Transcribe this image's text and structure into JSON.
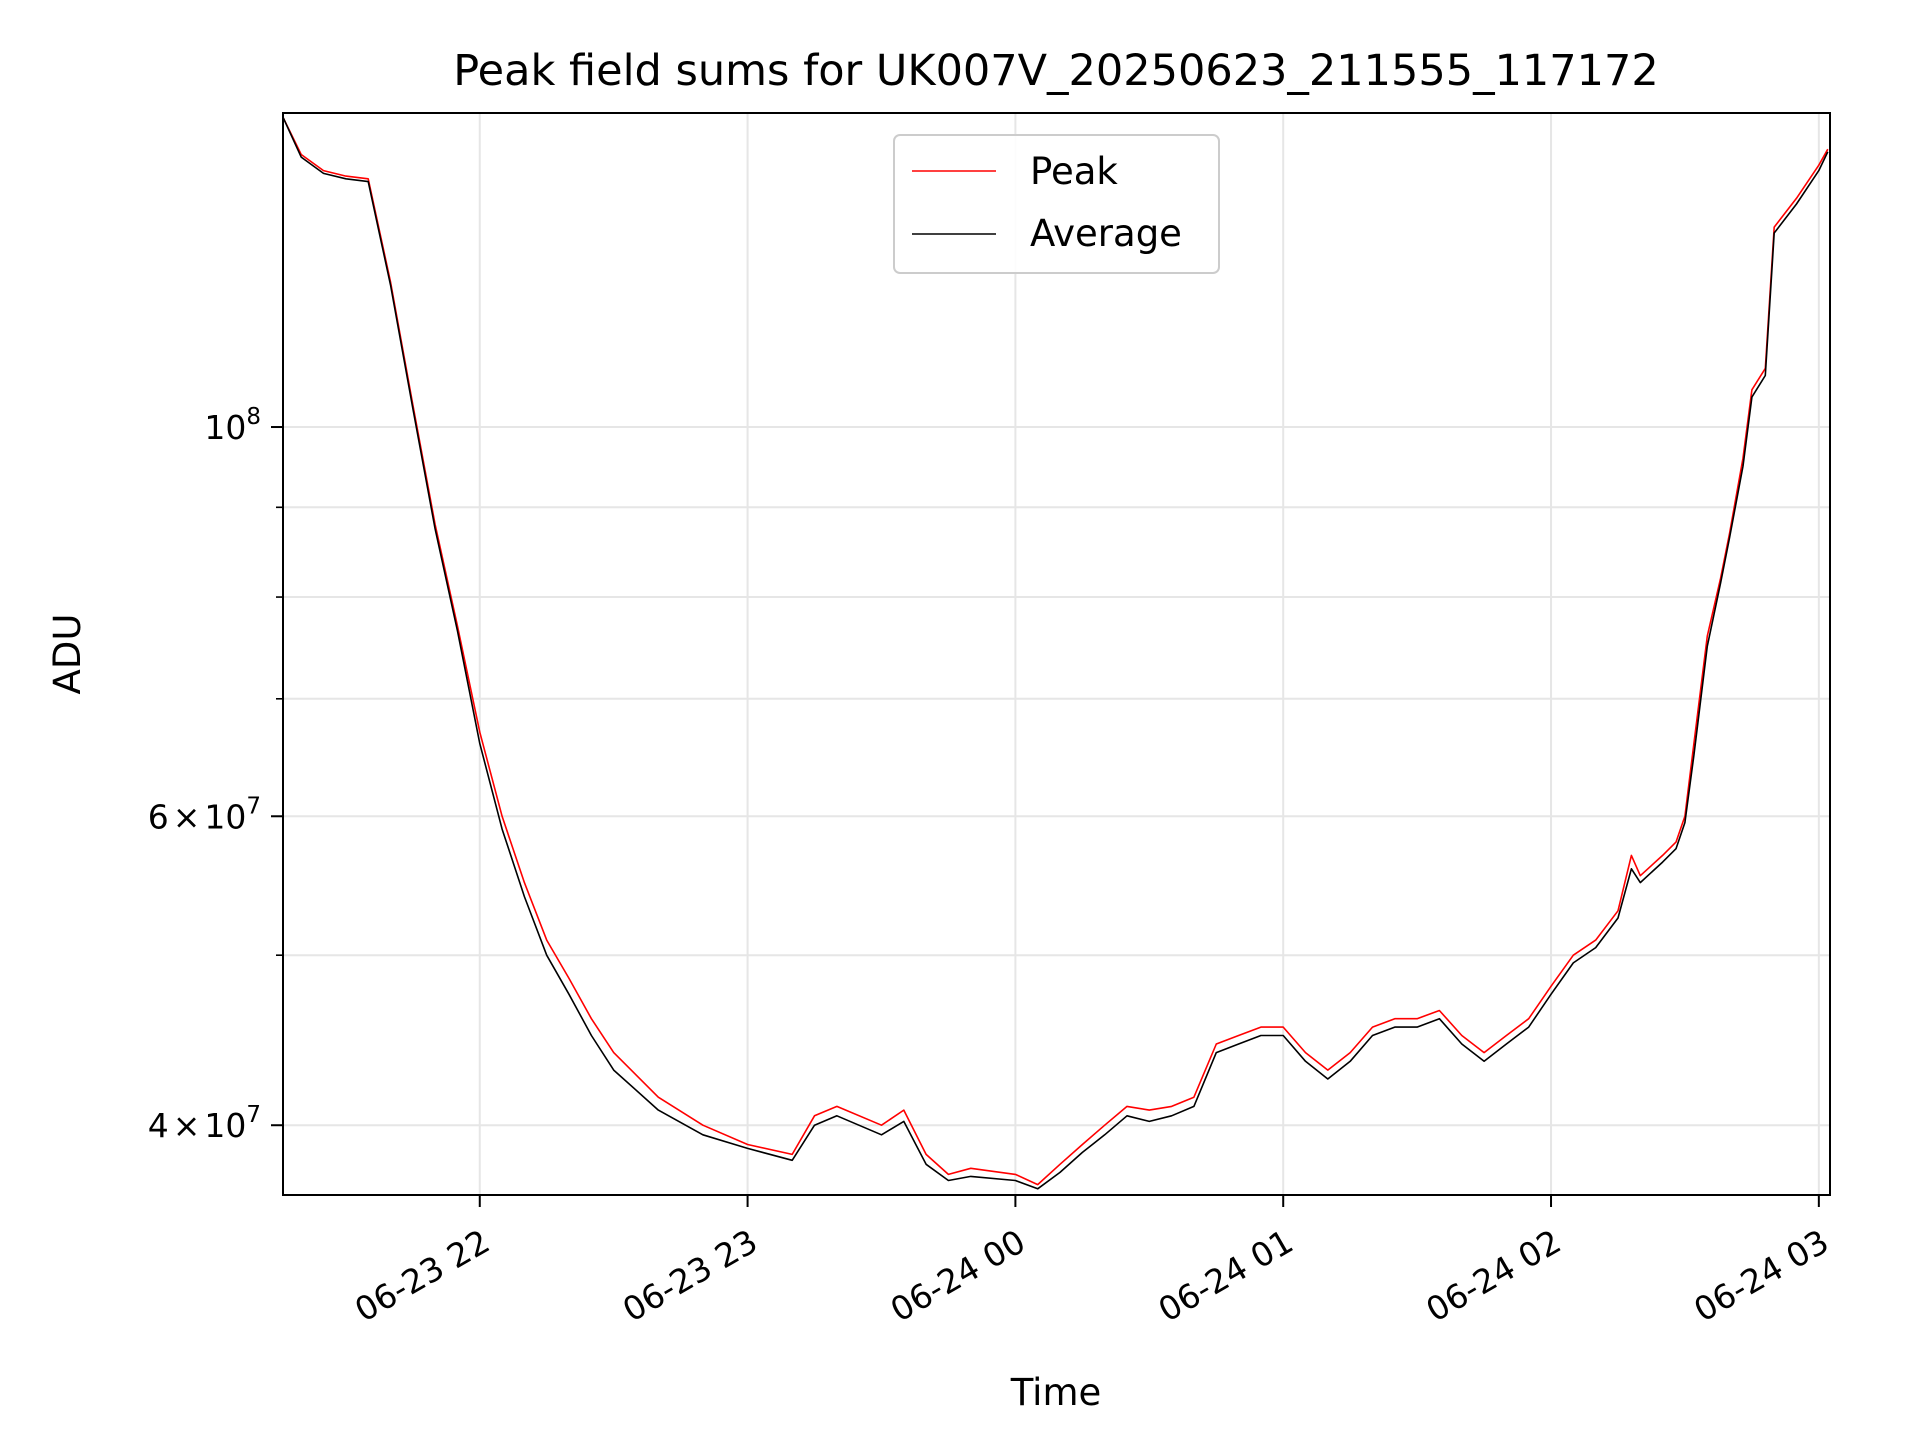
{
  "chart_data": {
    "type": "line",
    "title": "Peak field sums for UK007V_20250623_211555_117172",
    "xlabel": "Time",
    "ylabel": "ADU",
    "xlim": [
      "2025-06-23T21:15:55",
      "2025-06-24T03:02:30"
    ],
    "ylim": [
      36500000,
      151000000
    ],
    "yscale": "log",
    "grid": true,
    "legend_position": "top-center",
    "x_ticks": [
      {
        "t": "2025-06-23T22:00:00",
        "label": "06-23 22"
      },
      {
        "t": "2025-06-23T23:00:00",
        "label": "06-23 23"
      },
      {
        "t": "2025-06-24T00:00:00",
        "label": "06-24 00"
      },
      {
        "t": "2025-06-24T01:00:00",
        "label": "06-24 01"
      },
      {
        "t": "2025-06-24T02:00:00",
        "label": "06-24 02"
      },
      {
        "t": "2025-06-24T03:00:00",
        "label": "06-24 03"
      }
    ],
    "y_ticks_major": [
      {
        "value": 40000000,
        "label_mantissa": "4",
        "label_base": "10",
        "label_exp": "7"
      },
      {
        "value": 60000000,
        "label_mantissa": "6",
        "label_base": "10",
        "label_exp": "7"
      },
      {
        "value": 100000000,
        "label_mantissa": "",
        "label_base": "10",
        "label_exp": "8"
      }
    ],
    "y_ticks_minor": [
      50000000,
      70000000,
      80000000,
      90000000
    ],
    "series": [
      {
        "name": "Peak",
        "color": "#ff0000",
        "x": [
          "2025-06-23T21:16:00",
          "2025-06-23T21:20:00",
          "2025-06-23T21:25:00",
          "2025-06-23T21:30:00",
          "2025-06-23T21:35:00",
          "2025-06-23T21:40:00",
          "2025-06-23T21:45:00",
          "2025-06-23T21:50:00",
          "2025-06-23T21:55:00",
          "2025-06-23T22:00:00",
          "2025-06-23T22:05:00",
          "2025-06-23T22:10:00",
          "2025-06-23T22:15:00",
          "2025-06-23T22:20:00",
          "2025-06-23T22:25:00",
          "2025-06-23T22:30:00",
          "2025-06-23T22:40:00",
          "2025-06-23T22:50:00",
          "2025-06-23T23:00:00",
          "2025-06-23T23:10:00",
          "2025-06-23T23:15:00",
          "2025-06-23T23:20:00",
          "2025-06-23T23:30:00",
          "2025-06-23T23:35:00",
          "2025-06-23T23:40:00",
          "2025-06-23T23:45:00",
          "2025-06-23T23:50:00",
          "2025-06-24T00:00:00",
          "2025-06-24T00:05:00",
          "2025-06-24T00:10:00",
          "2025-06-24T00:15:00",
          "2025-06-24T00:20:00",
          "2025-06-24T00:25:00",
          "2025-06-24T00:30:00",
          "2025-06-24T00:35:00",
          "2025-06-24T00:40:00",
          "2025-06-24T00:45:00",
          "2025-06-24T00:50:00",
          "2025-06-24T00:55:00",
          "2025-06-24T01:00:00",
          "2025-06-24T01:05:00",
          "2025-06-24T01:10:00",
          "2025-06-24T01:15:00",
          "2025-06-24T01:20:00",
          "2025-06-24T01:25:00",
          "2025-06-24T01:30:00",
          "2025-06-24T01:35:00",
          "2025-06-24T01:40:00",
          "2025-06-24T01:45:00",
          "2025-06-24T01:50:00",
          "2025-06-24T01:55:00",
          "2025-06-24T02:00:00",
          "2025-06-24T02:05:00",
          "2025-06-24T02:10:00",
          "2025-06-24T02:15:00",
          "2025-06-24T02:18:00",
          "2025-06-24T02:20:00",
          "2025-06-24T02:25:00",
          "2025-06-24T02:28:00",
          "2025-06-24T02:30:00",
          "2025-06-24T02:32:00",
          "2025-06-24T02:35:00",
          "2025-06-24T02:38:00",
          "2025-06-24T02:40:00",
          "2025-06-24T02:43:00",
          "2025-06-24T02:45:00",
          "2025-06-24T02:48:00",
          "2025-06-24T02:50:00",
          "2025-06-24T02:55:00",
          "2025-06-24T03:00:00",
          "2025-06-24T03:02:00"
        ],
        "y": [
          150000000,
          143000000,
          140000000,
          139000000,
          138500000,
          121000000,
          103000000,
          88000000,
          77000000,
          67000000,
          60000000,
          55000000,
          51000000,
          48500000,
          46000000,
          44000000,
          41500000,
          40000000,
          39000000,
          38500000,
          40500000,
          41000000,
          40000000,
          40800000,
          38500000,
          37500000,
          37800000,
          37500000,
          37000000,
          38000000,
          39000000,
          40000000,
          41000000,
          40800000,
          41000000,
          41500000,
          44500000,
          45000000,
          45500000,
          45500000,
          44000000,
          43000000,
          44000000,
          45500000,
          46000000,
          46000000,
          46500000,
          45000000,
          44000000,
          45000000,
          46000000,
          48000000,
          50000000,
          51000000,
          53000000,
          57000000,
          55500000,
          57000000,
          58000000,
          60000000,
          66000000,
          76000000,
          82000000,
          87000000,
          96000000,
          105000000,
          108000000,
          130000000,
          135000000,
          141000000,
          144000000
        ]
      },
      {
        "name": "Average",
        "color": "#000000",
        "x": [
          "2025-06-23T21:16:00",
          "2025-06-23T21:20:00",
          "2025-06-23T21:25:00",
          "2025-06-23T21:30:00",
          "2025-06-23T21:35:00",
          "2025-06-23T21:40:00",
          "2025-06-23T21:45:00",
          "2025-06-23T21:50:00",
          "2025-06-23T21:55:00",
          "2025-06-23T22:00:00",
          "2025-06-23T22:05:00",
          "2025-06-23T22:10:00",
          "2025-06-23T22:15:00",
          "2025-06-23T22:20:00",
          "2025-06-23T22:25:00",
          "2025-06-23T22:30:00",
          "2025-06-23T22:40:00",
          "2025-06-23T22:50:00",
          "2025-06-23T23:00:00",
          "2025-06-23T23:10:00",
          "2025-06-23T23:15:00",
          "2025-06-23T23:20:00",
          "2025-06-23T23:30:00",
          "2025-06-23T23:35:00",
          "2025-06-23T23:40:00",
          "2025-06-23T23:45:00",
          "2025-06-23T23:50:00",
          "2025-06-24T00:00:00",
          "2025-06-24T00:05:00",
          "2025-06-24T00:10:00",
          "2025-06-24T00:15:00",
          "2025-06-24T00:20:00",
          "2025-06-24T00:25:00",
          "2025-06-24T00:30:00",
          "2025-06-24T00:35:00",
          "2025-06-24T00:40:00",
          "2025-06-24T00:45:00",
          "2025-06-24T00:50:00",
          "2025-06-24T00:55:00",
          "2025-06-24T01:00:00",
          "2025-06-24T01:05:00",
          "2025-06-24T01:10:00",
          "2025-06-24T01:15:00",
          "2025-06-24T01:20:00",
          "2025-06-24T01:25:00",
          "2025-06-24T01:30:00",
          "2025-06-24T01:35:00",
          "2025-06-24T01:40:00",
          "2025-06-24T01:45:00",
          "2025-06-24T01:50:00",
          "2025-06-24T01:55:00",
          "2025-06-24T02:00:00",
          "2025-06-24T02:05:00",
          "2025-06-24T02:10:00",
          "2025-06-24T02:15:00",
          "2025-06-24T02:18:00",
          "2025-06-24T02:20:00",
          "2025-06-24T02:25:00",
          "2025-06-24T02:28:00",
          "2025-06-24T02:30:00",
          "2025-06-24T02:32:00",
          "2025-06-24T02:35:00",
          "2025-06-24T02:38:00",
          "2025-06-24T02:40:00",
          "2025-06-24T02:43:00",
          "2025-06-24T02:45:00",
          "2025-06-24T02:48:00",
          "2025-06-24T02:50:00",
          "2025-06-24T02:55:00",
          "2025-06-24T03:00:00",
          "2025-06-24T03:02:00"
        ],
        "y": [
          150000000,
          142500000,
          139500000,
          138500000,
          138000000,
          120500000,
          102500000,
          87500000,
          76500000,
          66000000,
          59000000,
          54000000,
          50000000,
          47500000,
          45000000,
          43000000,
          40800000,
          39500000,
          38800000,
          38200000,
          40000000,
          40500000,
          39500000,
          40200000,
          38000000,
          37200000,
          37400000,
          37200000,
          36800000,
          37600000,
          38600000,
          39500000,
          40500000,
          40200000,
          40500000,
          41000000,
          44000000,
          44500000,
          45000000,
          45000000,
          43500000,
          42500000,
          43500000,
          45000000,
          45500000,
          45500000,
          46000000,
          44500000,
          43500000,
          44500000,
          45500000,
          47500000,
          49500000,
          50500000,
          52500000,
          56000000,
          55000000,
          56500000,
          57500000,
          59500000,
          65000000,
          75000000,
          81500000,
          86500000,
          95000000,
          104000000,
          107000000,
          129000000,
          134000000,
          140000000,
          143500000
        ]
      }
    ]
  }
}
